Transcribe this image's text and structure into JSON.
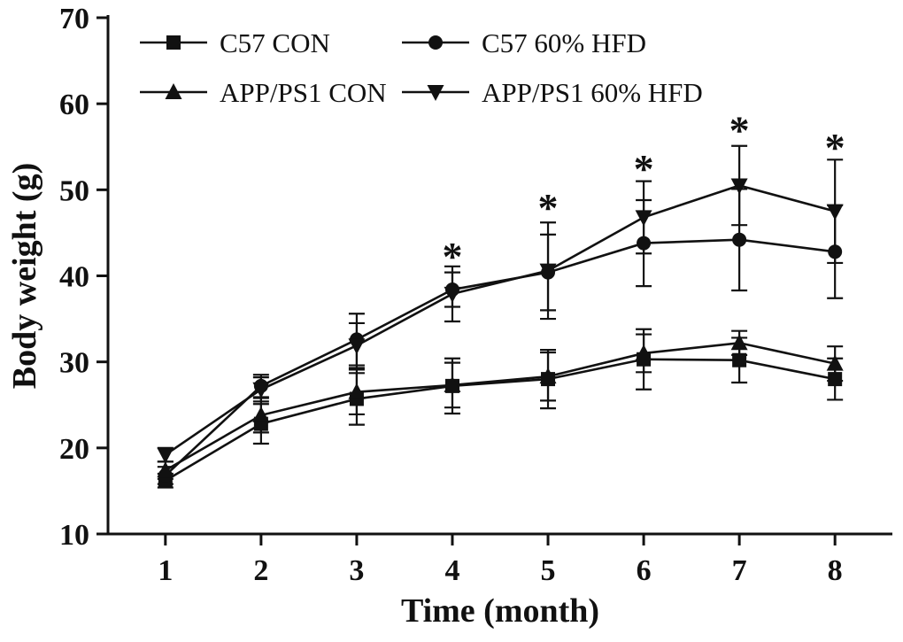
{
  "chart_data": {
    "type": "line",
    "title": "",
    "xlabel": "Time (month)",
    "ylabel": "Body weight (g)",
    "x": [
      1,
      2,
      3,
      4,
      5,
      6,
      7,
      8
    ],
    "xlim": [
      0.4,
      8.6
    ],
    "ylim": [
      10,
      70
    ],
    "yticks": [
      10,
      20,
      30,
      40,
      50,
      60,
      70
    ],
    "xticks": [
      1,
      2,
      3,
      4,
      5,
      6,
      7,
      8
    ],
    "grid": false,
    "legend_position": "top-left-inside",
    "ink_color": "#111111",
    "series": [
      {
        "name": "C57 CON",
        "marker": "square",
        "values": [
          16.2,
          22.8,
          25.7,
          27.2,
          28.0,
          30.3,
          30.2,
          28.0
        ],
        "errors": [
          0.8,
          2.3,
          3.0,
          3.2,
          3.4,
          3.5,
          2.6,
          2.4
        ]
      },
      {
        "name": "C57 60% HFD",
        "marker": "circle",
        "values": [
          16.8,
          27.2,
          32.6,
          38.4,
          40.4,
          43.8,
          44.2,
          42.8
        ],
        "errors": [
          1.0,
          1.3,
          3.0,
          2.0,
          4.4,
          5.0,
          5.9,
          5.4
        ]
      },
      {
        "name": "APP/PS1 CON",
        "marker": "triangle-up",
        "values": [
          17.4,
          23.8,
          26.5,
          27.3,
          28.3,
          31.0,
          32.2,
          29.8
        ],
        "errors": [
          1.0,
          2.0,
          2.6,
          2.6,
          2.8,
          2.2,
          1.4,
          2.0
        ]
      },
      {
        "name": "APP/PS1 60% HFD",
        "marker": "triangle-down",
        "values": [
          19.2,
          26.8,
          31.9,
          37.9,
          40.6,
          46.8,
          50.5,
          47.5
        ],
        "errors": [
          0.8,
          1.4,
          2.6,
          3.2,
          5.6,
          4.2,
          4.6,
          6.0
        ]
      }
    ],
    "annotations": [
      {
        "text": "*",
        "x": 4,
        "y": 42.3
      },
      {
        "text": "*",
        "x": 5,
        "y": 48.0
      },
      {
        "text": "*",
        "x": 6,
        "y": 52.5
      },
      {
        "text": "*",
        "x": 7,
        "y": 57.0
      },
      {
        "text": "*",
        "x": 8,
        "y": 55.0
      }
    ]
  }
}
